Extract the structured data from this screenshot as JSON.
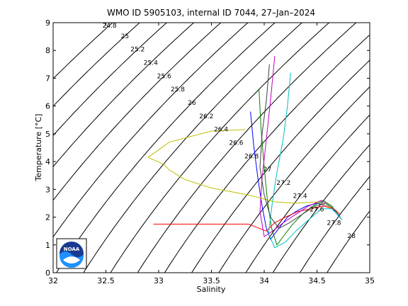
{
  "chart_data": {
    "type": "scatter",
    "title": "WMO ID 5905103, internal ID 7044, 27–Jan–2024",
    "xlabel": "Salinity",
    "ylabel": "Temperature [°C]",
    "xlim": [
      32,
      35
    ],
    "ylim": [
      0,
      9
    ],
    "xticks": [
      "32",
      "32.5",
      "33",
      "33.5",
      "34",
      "34.5",
      "35"
    ],
    "yticks": [
      "0",
      "1",
      "2",
      "3",
      "4",
      "5",
      "6",
      "7",
      "8",
      "9"
    ],
    "density_contours": [
      "24.8",
      "25",
      "25.2",
      "25.4",
      "25.6",
      "25.8",
      "26",
      "26.2",
      "26.4",
      "26.6",
      "26.8",
      "27",
      "27.2",
      "27.4",
      "27.6",
      "27.8",
      "28"
    ],
    "grid": false,
    "series": [
      {
        "color": "#0000ff",
        "x": [
          33.87,
          33.9,
          33.94,
          33.98,
          34.02,
          34.06,
          34.1,
          34.16,
          34.22,
          34.3,
          34.4,
          34.5,
          34.6,
          34.68,
          34.72
        ],
        "y": [
          5.8,
          4.6,
          3.4,
          2.4,
          1.6,
          1.2,
          1.4,
          1.7,
          2.0,
          2.2,
          2.4,
          2.5,
          2.4,
          2.2,
          2.0
        ]
      },
      {
        "color": "#008000",
        "x": [
          33.95,
          33.97,
          34.0,
          34.03,
          34.07,
          34.12,
          34.18,
          34.26,
          34.36,
          34.46,
          34.56,
          34.64,
          34.7
        ],
        "y": [
          6.6,
          5.2,
          3.8,
          2.6,
          1.6,
          1.0,
          1.3,
          1.7,
          2.1,
          2.4,
          2.6,
          2.4,
          2.1
        ]
      },
      {
        "color": "#ff0000",
        "x": [
          32.95,
          33.3,
          33.6,
          33.85,
          33.95,
          34.02,
          34.1,
          34.2,
          34.32,
          34.44,
          34.56,
          34.66,
          34.72
        ],
        "y": [
          1.75,
          1.75,
          1.75,
          1.75,
          1.6,
          1.5,
          1.8,
          2.0,
          2.2,
          2.3,
          2.4,
          2.3,
          2.1
        ]
      },
      {
        "color": "#00bfbf",
        "x": [
          34.25,
          34.22,
          34.18,
          34.12,
          34.08,
          34.04,
          34.1,
          34.2,
          34.3,
          34.42,
          34.54,
          34.64,
          34.74
        ],
        "y": [
          7.2,
          6.0,
          4.8,
          3.6,
          2.6,
          1.4,
          0.9,
          1.1,
          1.5,
          1.9,
          2.3,
          2.3,
          1.9
        ]
      },
      {
        "color": "#bf00bf",
        "x": [
          34.1,
          34.06,
          34.02,
          33.98,
          33.96,
          34.0,
          34.08,
          34.18,
          34.3,
          34.42,
          34.54,
          34.62
        ],
        "y": [
          7.8,
          6.2,
          4.8,
          3.4,
          2.2,
          1.3,
          1.5,
          1.8,
          2.1,
          2.4,
          2.6,
          2.4
        ]
      },
      {
        "color": "#bfbf00",
        "x": [
          33.82,
          33.5,
          33.1,
          32.9,
          33.05,
          33.1,
          33.25,
          33.5,
          33.85,
          34.1,
          34.3,
          34.5,
          34.66
        ],
        "y": [
          5.15,
          5.1,
          4.7,
          4.15,
          3.9,
          3.7,
          3.35,
          3.05,
          2.8,
          2.55,
          2.5,
          2.55,
          2.3
        ]
      },
      {
        "color": "#404040",
        "x": [
          34.05,
          34.02,
          33.98,
          33.96,
          34.0,
          34.06,
          34.14,
          34.24,
          34.36,
          34.48,
          34.58,
          34.66
        ],
        "y": [
          7.5,
          6.2,
          5.0,
          3.8,
          2.8,
          2.0,
          1.6,
          1.8,
          2.1,
          2.4,
          2.5,
          2.3
        ]
      }
    ]
  }
}
